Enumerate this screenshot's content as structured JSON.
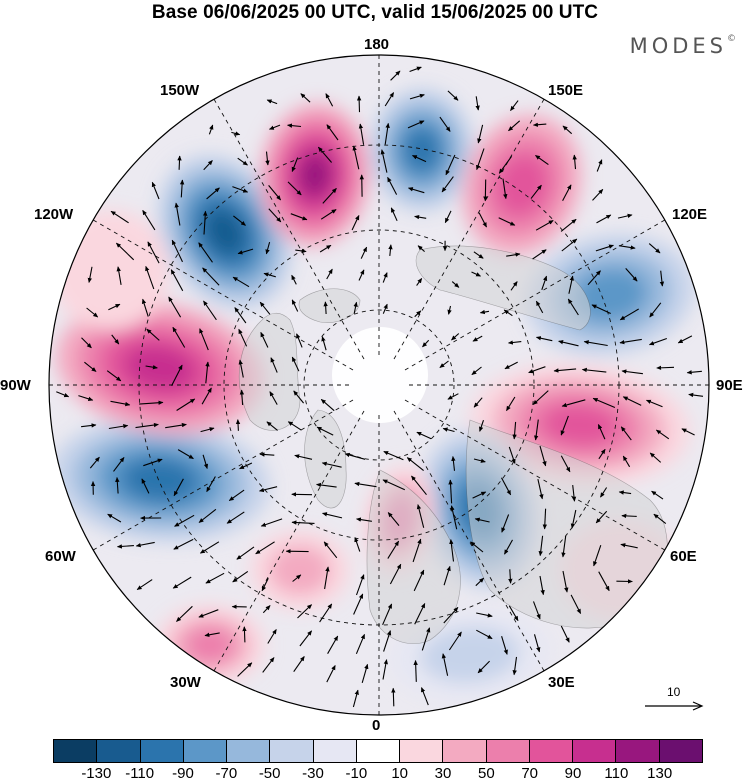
{
  "title": "Base 06/06/2025 00 UTC, valid 15/06/2025 00 UTC",
  "brand": {
    "text": "MODES",
    "mark": "©"
  },
  "map": {
    "projection": "north polar stereographic",
    "lon_labels": {
      "l180": "180",
      "l150e": "150E",
      "l120e": "120E",
      "l90e": "90E",
      "l60e": "60E",
      "l30e": "30E",
      "l0": "0",
      "l30w": "30W",
      "l60w": "60W",
      "l90w": "90W",
      "l120w": "120W",
      "l150w": "150W"
    },
    "vector_reference": "10",
    "colors": {
      "neg130": "#0b3d63",
      "neg110": "#185b8f",
      "neg90": "#2b74ad",
      "neg70": "#5c97c8",
      "neg50": "#96b8dc",
      "neg30": "#c6d3ea",
      "neg10": "#e6e7f3",
      "zero": "#ffffff",
      "pos10": "#fad7df",
      "pos30": "#f3aac1",
      "pos50": "#ec7fac",
      "pos70": "#e2549b",
      "pos90": "#c72f8f",
      "pos110": "#98177e",
      "pos130": "#6b0f6f",
      "land": "#d9d9d9",
      "background": "#eeeef0"
    }
  },
  "colorbar": {
    "colors": [
      "#0b3d63",
      "#185b8f",
      "#2b74ad",
      "#5c97c8",
      "#96b8dc",
      "#c6d3ea",
      "#e6e7f3",
      "#ffffff",
      "#fad7df",
      "#f3aac1",
      "#ec7fac",
      "#e2549b",
      "#c72f8f",
      "#98177e",
      "#6b0f6f"
    ],
    "ticks": [
      "-130",
      "-110",
      "-90",
      "-70",
      "-50",
      "-30",
      "-10",
      "10",
      "30",
      "50",
      "70",
      "90",
      "110",
      "130"
    ]
  }
}
